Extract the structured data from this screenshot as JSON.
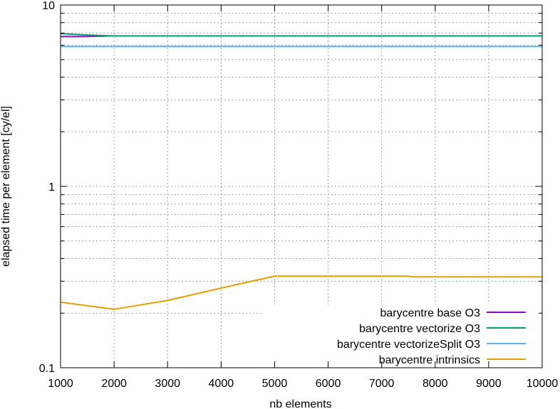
{
  "chart_data": {
    "type": "line",
    "title": "",
    "xlabel": "nb elements",
    "ylabel": "elapsed time per element [cy/el]",
    "xlim": [
      1000,
      10000
    ],
    "ylim": [
      0.1,
      10
    ],
    "yscale": "log",
    "grid": true,
    "legend_position": "bottom-right",
    "x_ticks": [
      1000,
      2000,
      3000,
      4000,
      5000,
      6000,
      7000,
      8000,
      9000,
      10000
    ],
    "x_tick_labels": [
      "1000",
      "2000",
      "3000",
      "4000",
      "5000",
      "6000",
      "7000",
      "8000",
      "9000",
      "10000"
    ],
    "y_ticks": [
      0.1,
      1,
      10
    ],
    "y_tick_labels": [
      "0.1",
      "1",
      "10"
    ],
    "series": [
      {
        "name": "barycentre base O3",
        "color": "#9400d3",
        "x": [
          1000,
          1400,
          1900,
          2500,
          4000
        ],
        "y": [
          6.7,
          6.7,
          6.75,
          6.75,
          6.75
        ]
      },
      {
        "name": "barycentre vectorize O3",
        "color": "#009e73",
        "x": [
          1000,
          1400,
          2000,
          3000,
          4000,
          5000,
          6000,
          7000,
          8000,
          9000,
          10000
        ],
        "y": [
          6.95,
          6.85,
          6.75,
          6.75,
          6.75,
          6.75,
          6.75,
          6.75,
          6.75,
          6.75,
          6.75
        ]
      },
      {
        "name": "barycentre vectorizeSplit O3",
        "color": "#56b4e9",
        "x": [
          1000,
          2000,
          3000,
          4000,
          5000,
          6000,
          7000,
          8000,
          9000,
          10000
        ],
        "y": [
          5.9,
          5.9,
          5.9,
          5.9,
          5.9,
          5.9,
          5.9,
          5.9,
          5.9,
          5.9
        ]
      },
      {
        "name": "barycentre intrinsics",
        "color": "#e69f00",
        "x": [
          1000,
          2000,
          3000,
          4000,
          5000,
          6000,
          7500,
          7600,
          10000
        ],
        "y": [
          0.23,
          0.21,
          0.235,
          0.275,
          0.32,
          0.32,
          0.32,
          0.317,
          0.317
        ]
      }
    ]
  }
}
